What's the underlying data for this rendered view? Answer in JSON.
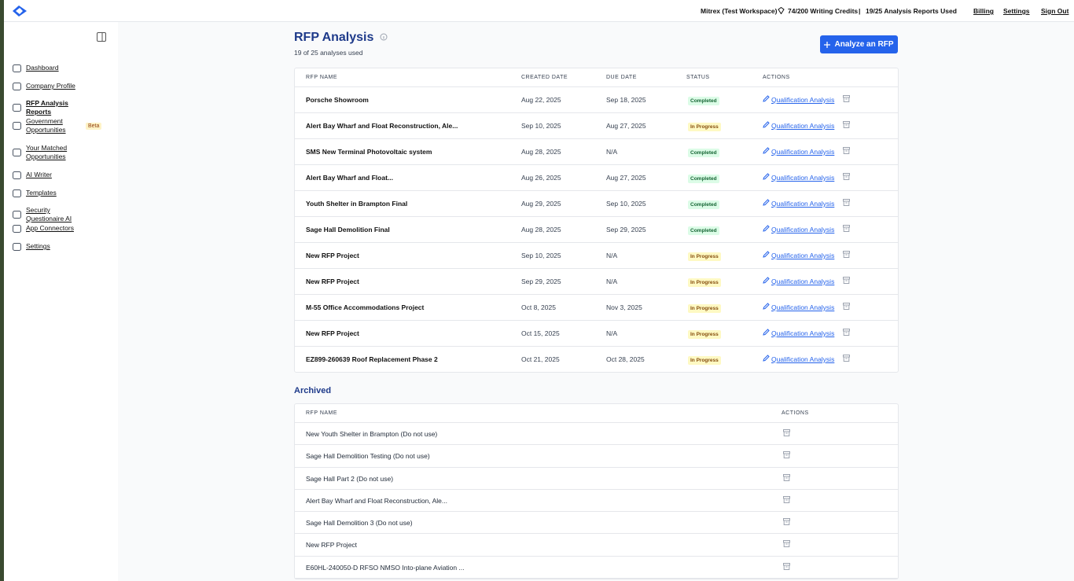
{
  "header": {
    "workspace": "Mitrex (Test Workspace)",
    "credits": "74/200 Writing Credits",
    "separator": "|",
    "reports_used": "19/25 Analysis Reports Used",
    "links": [
      "Billing",
      "Settings",
      "Sign Out"
    ]
  },
  "sidebar": {
    "items": [
      "Dashboard",
      "Company Profile",
      "RFP Analysis Reports",
      "Government Opportunities",
      "Your Matched Opportunities",
      "AI Writer",
      "Templates",
      "Security Questionaire AI",
      "App Connectors",
      "Settings"
    ],
    "badge": "Beta"
  },
  "main": {
    "title": "RFP Analysis",
    "subtitle": "19 of 25 analyses used",
    "button": "Analyze an RFP",
    "table": {
      "columns": [
        "RFP NAME",
        "CREATED DATE",
        "DUE DATE",
        "STATUS",
        "ACTIONS"
      ],
      "rows": [
        [
          "Porsche Showroom",
          "Aug 22, 2025",
          "Sep 18, 2025",
          "Completed",
          "Qualification Analysis"
        ],
        [
          "Alert Bay Wharf and Float Reconstruction, Ale...",
          "Sep 10, 2025",
          "Aug 27, 2025",
          "In Progress",
          "Qualification Analysis"
        ],
        [
          "SMS New Terminal Photovoltaic system",
          "Aug 28, 2025",
          "N/A",
          "Completed",
          "Qualification Analysis"
        ],
        [
          "Alert Bay Wharf and Float...",
          "Aug 26, 2025",
          "Aug 27, 2025",
          "Completed",
          "Qualification Analysis"
        ],
        [
          "Youth Shelter in Brampton Final",
          "Aug 29, 2025",
          "Sep 10, 2025",
          "Completed",
          "Qualification Analysis"
        ],
        [
          "Sage Hall Demolition Final",
          "Aug 28, 2025",
          "Sep 29, 2025",
          "Completed",
          "Qualification Analysis"
        ],
        [
          "New RFP Project",
          "Sep 10, 2025",
          "N/A",
          "In Progress",
          "Qualification Analysis"
        ],
        [
          "New RFP Project",
          "Sep 29, 2025",
          "N/A",
          "In Progress",
          "Qualification Analysis"
        ],
        [
          "M-55 Office Accommodations Project",
          "Oct 8, 2025",
          "Nov 3, 2025",
          "In Progress",
          "Qualification Analysis"
        ],
        [
          "New RFP Project",
          "Oct 15, 2025",
          "N/A",
          "In Progress",
          "Qualification Analysis"
        ],
        [
          "EZ899-260639 Roof Replacement Phase 2",
          "Oct 21, 2025",
          "Oct 28, 2025",
          "In Progress",
          "Qualification Analysis"
        ]
      ]
    },
    "archived": {
      "title": "Archived",
      "columns": [
        "RFP NAME",
        "ACTIONS"
      ],
      "rows": [
        "New Youth Shelter in Brampton (Do not use)",
        "Sage Hall Demolition Testing (Do not use)",
        "Sage Hall Part 2 (Do not use)",
        "Alert Bay Wharf and Float Reconstruction, Ale...",
        "Sage Hall Demolition 3 (Do not use)",
        "New RFP Project",
        "E60HL-240050-D RFSO NMSO Into-plane Aviation ..."
      ]
    }
  }
}
